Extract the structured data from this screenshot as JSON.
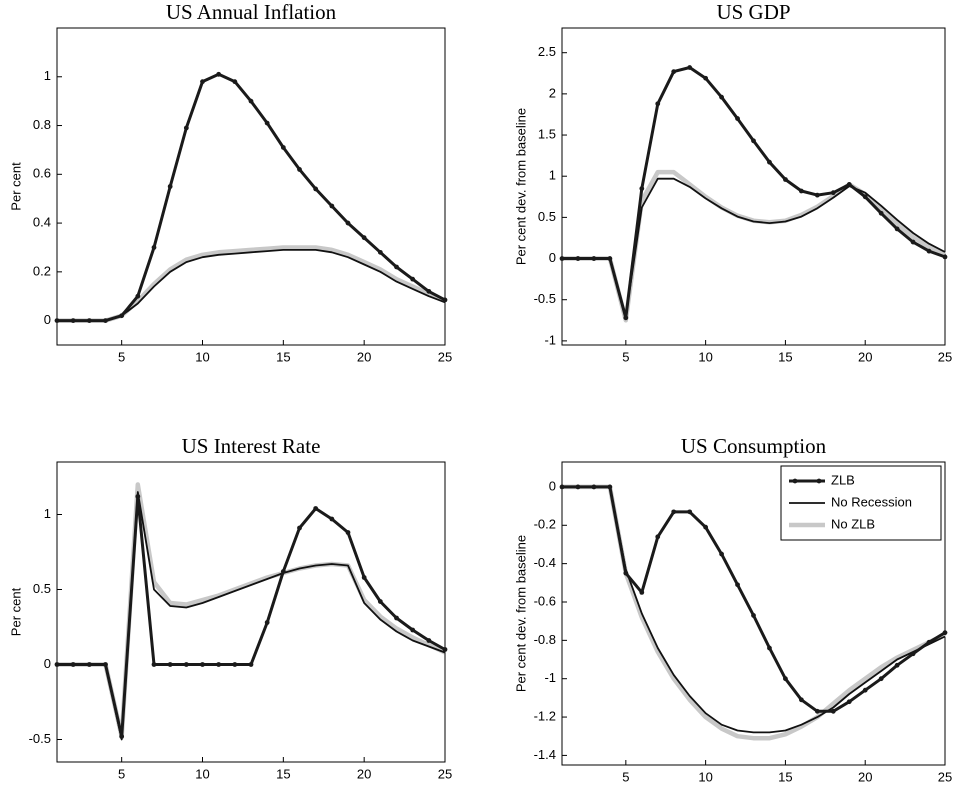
{
  "chart_data": [
    {
      "type": "line",
      "title": "US Annual Inflation",
      "ylabel": "Per cent",
      "x": [
        1,
        2,
        3,
        4,
        5,
        6,
        7,
        8,
        9,
        10,
        11,
        12,
        13,
        14,
        15,
        16,
        17,
        18,
        19,
        20,
        21,
        22,
        23,
        24,
        25
      ],
      "xlim": [
        1,
        25
      ],
      "xticks": [
        5,
        10,
        15,
        20,
        25
      ],
      "ylim": [
        -0.1,
        1.2
      ],
      "yticks": [
        0,
        0.2,
        0.4,
        0.6,
        0.8,
        1
      ],
      "series": [
        {
          "color": "#c8c8c8",
          "values": [
            0,
            0,
            0,
            0,
            0.02,
            0.08,
            0.15,
            0.21,
            0.25,
            0.27,
            0.28,
            0.285,
            0.29,
            0.295,
            0.3,
            0.3,
            0.3,
            0.29,
            0.27,
            0.24,
            0.21,
            0.17,
            0.14,
            0.11,
            0.08
          ]
        },
        {
          "color": "#111111",
          "values": [
            0,
            0,
            0,
            0,
            0.02,
            0.07,
            0.14,
            0.2,
            0.24,
            0.26,
            0.27,
            0.275,
            0.28,
            0.285,
            0.29,
            0.29,
            0.29,
            0.28,
            0.26,
            0.23,
            0.2,
            0.16,
            0.13,
            0.1,
            0.075
          ]
        },
        {
          "color": "#1a1a1a",
          "marker": true,
          "values": [
            0,
            0,
            0,
            0,
            0.02,
            0.1,
            0.3,
            0.55,
            0.79,
            0.98,
            1.01,
            0.98,
            0.9,
            0.81,
            0.71,
            0.62,
            0.54,
            0.47,
            0.4,
            0.34,
            0.28,
            0.22,
            0.17,
            0.12,
            0.085
          ]
        }
      ]
    },
    {
      "type": "line",
      "title": "US GDP",
      "ylabel": "Per cent dev. from baseline",
      "x": [
        1,
        2,
        3,
        4,
        5,
        6,
        7,
        8,
        9,
        10,
        11,
        12,
        13,
        14,
        15,
        16,
        17,
        18,
        19,
        20,
        21,
        22,
        23,
        24,
        25
      ],
      "xlim": [
        1,
        25
      ],
      "xticks": [
        5,
        10,
        15,
        20,
        25
      ],
      "ylim": [
        -1.05,
        2.8
      ],
      "yticks": [
        -1,
        -0.5,
        0,
        0.5,
        1,
        1.5,
        2,
        2.5
      ],
      "series": [
        {
          "color": "#c8c8c8",
          "values": [
            0,
            0,
            0,
            0,
            -0.75,
            0.7,
            1.05,
            1.05,
            0.9,
            0.75,
            0.62,
            0.52,
            0.46,
            0.44,
            0.46,
            0.53,
            0.63,
            0.76,
            0.9,
            0.78,
            0.6,
            0.42,
            0.26,
            0.14,
            0.05
          ]
        },
        {
          "color": "#111111",
          "values": [
            0,
            0,
            0,
            0,
            -0.7,
            0.62,
            0.97,
            0.97,
            0.87,
            0.73,
            0.61,
            0.51,
            0.45,
            0.43,
            0.45,
            0.51,
            0.61,
            0.74,
            0.88,
            0.8,
            0.64,
            0.47,
            0.31,
            0.18,
            0.08
          ]
        },
        {
          "color": "#1a1a1a",
          "marker": true,
          "values": [
            0,
            0,
            0,
            0,
            -0.72,
            0.85,
            1.88,
            2.27,
            2.32,
            2.19,
            1.96,
            1.7,
            1.43,
            1.17,
            0.96,
            0.82,
            0.77,
            0.8,
            0.9,
            0.75,
            0.55,
            0.36,
            0.2,
            0.09,
            0.02
          ]
        }
      ]
    },
    {
      "type": "line",
      "title": "US Interest Rate",
      "ylabel": "Per cent",
      "x": [
        1,
        2,
        3,
        4,
        5,
        6,
        7,
        8,
        9,
        10,
        11,
        12,
        13,
        14,
        15,
        16,
        17,
        18,
        19,
        20,
        21,
        22,
        23,
        24,
        25
      ],
      "xlim": [
        1,
        25
      ],
      "xticks": [
        5,
        10,
        15,
        20,
        25
      ],
      "ylim": [
        -0.65,
        1.35
      ],
      "yticks": [
        -0.5,
        0,
        0.5,
        1
      ],
      "series": [
        {
          "color": "#c8c8c8",
          "values": [
            0,
            0,
            0,
            0,
            -0.48,
            1.2,
            0.55,
            0.41,
            0.4,
            0.43,
            0.46,
            0.5,
            0.54,
            0.58,
            0.61,
            0.64,
            0.66,
            0.67,
            0.66,
            0.43,
            0.32,
            0.24,
            0.18,
            0.13,
            0.08
          ]
        },
        {
          "color": "#111111",
          "values": [
            0,
            0,
            0,
            0,
            -0.5,
            1.15,
            0.5,
            0.39,
            0.38,
            0.41,
            0.45,
            0.49,
            0.53,
            0.57,
            0.61,
            0.64,
            0.66,
            0.67,
            0.66,
            0.41,
            0.3,
            0.22,
            0.16,
            0.12,
            0.08
          ]
        },
        {
          "color": "#1a1a1a",
          "marker": true,
          "values": [
            0,
            0,
            0,
            0,
            -0.48,
            1.12,
            0,
            0,
            0,
            0,
            0,
            0,
            0,
            0.28,
            0.62,
            0.91,
            1.04,
            0.97,
            0.88,
            0.58,
            0.42,
            0.31,
            0.23,
            0.16,
            0.1
          ]
        }
      ]
    },
    {
      "type": "line",
      "title": "US Consumption",
      "ylabel": "Per cent dev. from baseline",
      "x": [
        1,
        2,
        3,
        4,
        5,
        6,
        7,
        8,
        9,
        10,
        11,
        12,
        13,
        14,
        15,
        16,
        17,
        18,
        19,
        20,
        21,
        22,
        23,
        24,
        25
      ],
      "xlim": [
        1,
        25
      ],
      "xticks": [
        5,
        10,
        15,
        20,
        25
      ],
      "ylim": [
        -1.45,
        0.13
      ],
      "yticks": [
        -1.4,
        -1.2,
        -1,
        -0.8,
        -0.6,
        -0.4,
        -0.2,
        0
      ],
      "legend": "northeast",
      "series": [
        {
          "name": "No ZLB",
          "color": "#c8c8c8",
          "values": [
            0,
            0,
            0,
            0,
            -0.45,
            -0.68,
            -0.86,
            -1.0,
            -1.11,
            -1.2,
            -1.26,
            -1.3,
            -1.31,
            -1.31,
            -1.29,
            -1.25,
            -1.2,
            -1.13,
            -1.06,
            -1.0,
            -0.94,
            -0.89,
            -0.85,
            -0.81,
            -0.77
          ]
        },
        {
          "name": "No Recession",
          "color": "#111111",
          "values": [
            0,
            0,
            0,
            0,
            -0.43,
            -0.66,
            -0.84,
            -0.98,
            -1.09,
            -1.18,
            -1.24,
            -1.27,
            -1.28,
            -1.28,
            -1.27,
            -1.24,
            -1.2,
            -1.15,
            -1.08,
            -1.02,
            -0.96,
            -0.9,
            -0.86,
            -0.82,
            -0.78
          ]
        },
        {
          "name": "ZLB",
          "color": "#1a1a1a",
          "marker": true,
          "values": [
            0,
            0,
            0,
            0,
            -0.45,
            -0.55,
            -0.26,
            -0.13,
            -0.13,
            -0.21,
            -0.35,
            -0.51,
            -0.67,
            -0.84,
            -1,
            -1.11,
            -1.17,
            -1.17,
            -1.12,
            -1.06,
            -1.0,
            -0.93,
            -0.87,
            -0.81,
            -0.76
          ]
        }
      ]
    }
  ]
}
